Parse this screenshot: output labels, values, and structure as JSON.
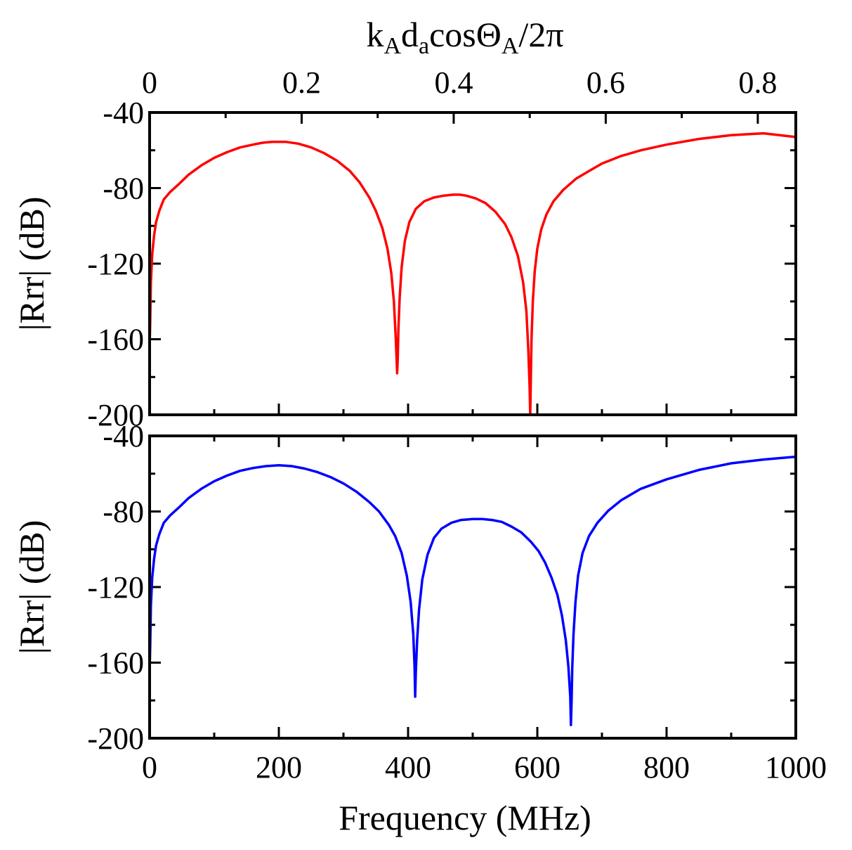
{
  "chart_data": [
    {
      "type": "line",
      "panel": "top",
      "top_axis": {
        "label_parts": {
          "k": "k",
          "k_sub": "A",
          "d": "d",
          "d_sub": "a",
          "cos": "cosΘ",
          "theta_sub": "A",
          "tail": "/2π"
        },
        "range": [
          0,
          0.85
        ],
        "ticks": [
          0,
          0.2,
          0.4,
          0.6,
          0.8
        ],
        "tick_labels": [
          "0",
          "0.2",
          "0.4",
          "0.6",
          "0.8"
        ],
        "minor_step": 0.1
      },
      "xlim": [
        0,
        1000
      ],
      "ylabel": "|Rrr| (dB)",
      "ylim": [
        -200,
        -40
      ],
      "yticks": [
        -40,
        -80,
        -120,
        -160,
        -200
      ],
      "ytick_labels": [
        "-40",
        "-80",
        "-120",
        "-160",
        "-200"
      ],
      "series": [
        {
          "name": "Rrr (red)",
          "color": "#ff0000",
          "x": [
            0,
            1,
            2,
            4,
            7,
            10,
            15,
            22,
            32,
            45,
            60,
            80,
            100,
            120,
            140,
            160,
            175,
            190,
            210,
            230,
            250,
            270,
            290,
            310,
            325,
            340,
            350,
            360,
            368,
            374,
            378,
            381,
            383,
            384,
            385,
            387,
            390,
            395,
            402,
            412,
            425,
            440,
            455,
            470,
            480,
            490,
            505,
            520,
            535,
            550,
            560,
            570,
            578,
            583,
            586,
            588,
            589,
            590,
            591,
            593,
            596,
            600,
            606,
            614,
            625,
            640,
            660,
            680,
            700,
            730,
            760,
            800,
            850,
            900,
            950,
            1000
          ],
          "values": [
            -165,
            -150,
            -130,
            -115,
            -105,
            -98,
            -92,
            -86,
            -82,
            -78,
            -73,
            -68,
            -64,
            -61,
            -58.5,
            -57,
            -56,
            -55.5,
            -55.5,
            -56.5,
            -58.5,
            -61.5,
            -65.5,
            -71,
            -77,
            -85,
            -92,
            -101,
            -112,
            -125,
            -140,
            -160,
            -178,
            -170,
            -155,
            -138,
            -122,
            -108,
            -98,
            -91,
            -87,
            -85,
            -84,
            -83.5,
            -83.5,
            -84,
            -85.5,
            -88,
            -92.5,
            -99,
            -106,
            -116,
            -130,
            -145,
            -165,
            -185,
            -200,
            -180,
            -160,
            -140,
            -124,
            -112,
            -102,
            -94,
            -87,
            -81,
            -75,
            -71,
            -67,
            -63,
            -60,
            -57,
            -54,
            -52,
            -51,
            -53
          ]
        }
      ]
    },
    {
      "type": "line",
      "panel": "bottom",
      "xlabel": "Frequency (MHz)",
      "xlim": [
        0,
        1000
      ],
      "xticks": [
        0,
        200,
        400,
        600,
        800,
        1000
      ],
      "xtick_labels": [
        "0",
        "200",
        "400",
        "600",
        "800",
        "1000"
      ],
      "ylabel": "|Rrr| (dB)",
      "ylim": [
        -200,
        -40
      ],
      "yticks": [
        -40,
        -80,
        -120,
        -160,
        -200
      ],
      "ytick_labels": [
        "-40",
        "-80",
        "-120",
        "-160",
        "-200"
      ],
      "series": [
        {
          "name": "Rrr (blue)",
          "color": "#0000ff",
          "x": [
            0,
            1,
            2,
            4,
            7,
            10,
            15,
            22,
            32,
            45,
            60,
            80,
            100,
            120,
            140,
            160,
            180,
            200,
            220,
            240,
            260,
            280,
            300,
            320,
            340,
            355,
            370,
            380,
            390,
            398,
            404,
            408,
            410,
            411,
            412,
            414,
            417,
            422,
            430,
            440,
            452,
            467,
            482,
            500,
            515,
            530,
            545,
            560,
            575,
            590,
            602,
            612,
            622,
            631,
            638,
            644,
            648,
            651,
            652,
            653,
            654,
            656,
            659,
            663,
            670,
            680,
            693,
            710,
            730,
            760,
            800,
            850,
            900,
            950,
            1000
          ],
          "values": [
            -165,
            -150,
            -130,
            -115,
            -105,
            -98,
            -92,
            -86,
            -82,
            -78,
            -73,
            -68,
            -64,
            -61,
            -58.5,
            -57,
            -56,
            -55.5,
            -56,
            -57.3,
            -59.2,
            -61.8,
            -65.2,
            -69.5,
            -75,
            -80,
            -87,
            -93,
            -102,
            -114,
            -128,
            -145,
            -162,
            -178,
            -165,
            -148,
            -132,
            -116,
            -103,
            -94,
            -89,
            -86,
            -84.5,
            -84,
            -84,
            -84.5,
            -85.5,
            -88,
            -91,
            -96,
            -101,
            -107,
            -115,
            -124,
            -135,
            -148,
            -162,
            -178,
            -193,
            -180,
            -163,
            -145,
            -128,
            -114,
            -102,
            -93,
            -86,
            -79.5,
            -74,
            -68,
            -63,
            -58,
            -54.5,
            -52.5,
            -51
          ]
        }
      ]
    }
  ]
}
